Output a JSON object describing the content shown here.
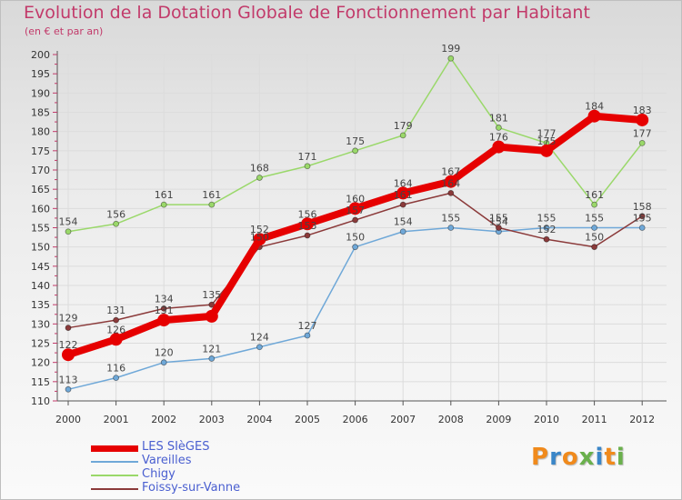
{
  "title": "Evolution de la Dotation Globale de Fonctionnement par Habitant",
  "subtitle": "(en € et par an)",
  "logo": {
    "letters": [
      "P",
      "r",
      "o",
      "x",
      "i",
      "t",
      "i"
    ],
    "colors": [
      "#f08a1c",
      "#3a86c8",
      "#f08a1c",
      "#6ab04c",
      "#3a86c8",
      "#f08a1c",
      "#6ab04c"
    ]
  },
  "chart_data": {
    "type": "line",
    "title": "Evolution de la Dotation Globale de Fonctionnement par Habitant",
    "subtitle": "(en € et par an)",
    "xlabel": "",
    "ylabel": "",
    "ylim": [
      110,
      200
    ],
    "y_ticks": [
      110,
      115,
      120,
      125,
      130,
      135,
      140,
      145,
      150,
      155,
      160,
      165,
      170,
      175,
      180,
      185,
      190,
      195,
      200
    ],
    "grid": true,
    "legend_position": "bottom-left",
    "x": [
      "2000",
      "2001",
      "2002",
      "2003",
      "2004",
      "2005",
      "2006",
      "2007",
      "2008",
      "2009",
      "2010",
      "2011",
      "2012"
    ],
    "series": [
      {
        "name": "LES SIèGES",
        "color": "#e60000",
        "emphasis": true,
        "values": [
          122,
          126,
          131,
          132,
          152,
          156,
          160,
          164,
          167,
          176,
          175,
          184,
          183
        ],
        "labels": [
          122,
          126,
          131,
          null,
          152,
          156,
          160,
          164,
          167,
          176,
          175,
          184,
          183
        ]
      },
      {
        "name": "Vareilles",
        "color": "#6fa8d8",
        "emphasis": false,
        "values": [
          113,
          116,
          120,
          121,
          124,
          127,
          150,
          154,
          155,
          154,
          155,
          155,
          155
        ],
        "labels": [
          113,
          116,
          120,
          121,
          124,
          127,
          150,
          154,
          155,
          154,
          155,
          155,
          155
        ]
      },
      {
        "name": "Chigy",
        "color": "#9ad86a",
        "emphasis": false,
        "values": [
          154,
          156,
          161,
          161,
          168,
          171,
          175,
          179,
          199,
          181,
          177,
          161,
          177
        ],
        "labels": [
          154,
          156,
          161,
          161,
          168,
          171,
          175,
          179,
          199,
          181,
          177,
          161,
          177
        ]
      },
      {
        "name": "Foissy-sur-Vanne",
        "color": "#8b3a3a",
        "emphasis": false,
        "values": [
          129,
          131,
          134,
          135,
          150,
          153,
          157,
          161,
          164,
          155,
          152,
          150,
          158
        ],
        "labels": [
          129,
          131,
          134,
          135,
          150,
          153,
          157,
          161,
          164,
          155,
          152,
          150,
          158
        ]
      }
    ]
  }
}
